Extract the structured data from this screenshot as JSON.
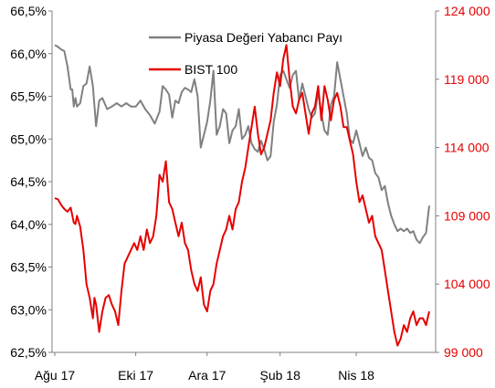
{
  "chart_data": {
    "type": "line",
    "title": "",
    "xlabel": "",
    "ylabel": "",
    "x_tick_labels": [
      "Ağu 17",
      "Eki 17",
      "Ara 17",
      "Şub 18",
      "Nis 18"
    ],
    "y_left": {
      "ylim": [
        62.5,
        66.5
      ],
      "ticks": [
        "66,5%",
        "66,0%",
        "65,5%",
        "65,0%",
        "64,5%",
        "64,0%",
        "63,5%",
        "63,0%",
        "62,5%"
      ]
    },
    "y_right": {
      "ylim": [
        99000,
        124000
      ],
      "ticks": [
        "124 000",
        "119 000",
        "114 000",
        "109 000",
        "104 000",
        "99 000"
      ],
      "color": "#e60000"
    },
    "grid": false,
    "legend_position": "top-center",
    "series": [
      {
        "name": "Piyasa Değeri Yabancı Payı",
        "axis": "left",
        "color": "#808080",
        "x": [
          0,
          2,
          4,
          6,
          8,
          10,
          11,
          12,
          13,
          14,
          16,
          18,
          20,
          22,
          24,
          26,
          28,
          30,
          33,
          36,
          39,
          42,
          45,
          48,
          51,
          54,
          57,
          60,
          63,
          66,
          68,
          70,
          72,
          74,
          76,
          78,
          80,
          82,
          84,
          86,
          88,
          90,
          92,
          94,
          96,
          98,
          100,
          102,
          104,
          106,
          108,
          110,
          112,
          114,
          116,
          118,
          120,
          122,
          124,
          126,
          128,
          130,
          132,
          134,
          136,
          138,
          140,
          142,
          144,
          146,
          148,
          150,
          152,
          154,
          156,
          158,
          160,
          162,
          164,
          166,
          168,
          170,
          172,
          174,
          176,
          178,
          180,
          182,
          184,
          186,
          188,
          190,
          192,
          194,
          196,
          198,
          200,
          202,
          204,
          206,
          208,
          210,
          212,
          214,
          216,
          218,
          220,
          222,
          224,
          226,
          228,
          230,
          232,
          234,
          236
        ],
        "values": [
          66.1,
          66.08,
          66.05,
          66.03,
          65.85,
          65.58,
          65.58,
          65.38,
          65.48,
          65.38,
          65.42,
          65.62,
          65.65,
          65.85,
          65.62,
          65.15,
          65.45,
          65.48,
          65.35,
          65.38,
          65.42,
          65.38,
          65.42,
          65.38,
          65.38,
          65.45,
          65.35,
          65.28,
          65.18,
          65.32,
          65.62,
          65.58,
          65.52,
          65.25,
          65.45,
          65.42,
          65.55,
          65.6,
          65.58,
          65.55,
          65.7,
          65.5,
          64.9,
          65.05,
          65.2,
          65.45,
          65.8,
          65.05,
          65.15,
          65.35,
          65.3,
          64.95,
          65.1,
          65.15,
          65.35,
          65.0,
          65.05,
          65.15,
          64.95,
          64.88,
          64.85,
          64.98,
          64.88,
          64.75,
          64.8,
          65.2,
          65.4,
          65.75,
          65.8,
          65.7,
          65.6,
          65.75,
          65.8,
          65.45,
          65.65,
          65.5,
          65.35,
          65.25,
          65.3,
          65.55,
          65.3,
          65.1,
          65.05,
          65.4,
          65.5,
          65.9,
          65.7,
          65.5,
          65.3,
          65.0,
          64.95,
          65.1,
          64.95,
          64.8,
          64.9,
          64.78,
          64.75,
          64.6,
          64.55,
          64.4,
          64.45,
          64.25,
          64.1,
          64.0,
          63.92,
          63.95,
          63.92,
          63.95,
          63.9,
          63.92,
          63.82,
          63.78,
          63.85,
          63.9,
          64.22
        ]
      },
      {
        "name": "BIST 100",
        "axis": "right",
        "color": "#e60000",
        "x": [
          0,
          2,
          4,
          6,
          8,
          10,
          12,
          13,
          14,
          16,
          18,
          20,
          22,
          24,
          25,
          26,
          28,
          30,
          32,
          34,
          36,
          38,
          40,
          42,
          44,
          46,
          48,
          50,
          52,
          54,
          56,
          58,
          60,
          62,
          64,
          66,
          68,
          70,
          72,
          74,
          76,
          78,
          80,
          82,
          84,
          86,
          88,
          90,
          92,
          94,
          96,
          98,
          100,
          102,
          104,
          106,
          108,
          110,
          112,
          114,
          116,
          118,
          120,
          122,
          124,
          126,
          128,
          130,
          132,
          134,
          136,
          138,
          140,
          142,
          144,
          146,
          148,
          150,
          152,
          154,
          156,
          158,
          160,
          162,
          164,
          166,
          168,
          170,
          172,
          174,
          176,
          178,
          180,
          182,
          184,
          186,
          188,
          190,
          192,
          194,
          196,
          198,
          200,
          202,
          204,
          206,
          208,
          210,
          212,
          214,
          216,
          218,
          220,
          222,
          224,
          226,
          228,
          230,
          232,
          234,
          236
        ],
        "values": [
          110300,
          110200,
          109800,
          109500,
          109300,
          109600,
          108500,
          108400,
          109000,
          108200,
          106500,
          104000,
          103000,
          101500,
          103000,
          102500,
          100500,
          102000,
          103000,
          103200,
          102500,
          102000,
          101000,
          103500,
          105500,
          106000,
          106500,
          107000,
          106500,
          107500,
          106500,
          108000,
          107000,
          107500,
          109000,
          112000,
          111500,
          113000,
          110000,
          109500,
          108500,
          107500,
          108500,
          107000,
          106500,
          105000,
          104000,
          103500,
          104500,
          102500,
          102000,
          103500,
          104000,
          105500,
          106500,
          107500,
          108000,
          109000,
          108000,
          109500,
          110000,
          111500,
          112500,
          114000,
          115500,
          117000,
          115000,
          113500,
          114000,
          115000,
          116000,
          118000,
          119500,
          118500,
          120500,
          121500,
          119000,
          117000,
          116500,
          117500,
          118000,
          116500,
          115000,
          116500,
          117000,
          118500,
          116000,
          118500,
          117500,
          116000,
          117500,
          118000,
          117000,
          115500,
          115500,
          114500,
          113500,
          111500,
          110000,
          110500,
          109500,
          108500,
          109000,
          107500,
          107000,
          106500,
          105000,
          103500,
          102000,
          100500,
          99500,
          100000,
          101000,
          100500,
          101500,
          102000,
          101000,
          101500,
          101500,
          101000,
          102000
        ]
      }
    ],
    "x_tick_positions": [
      0,
      51,
      96,
      142,
      190
    ]
  }
}
